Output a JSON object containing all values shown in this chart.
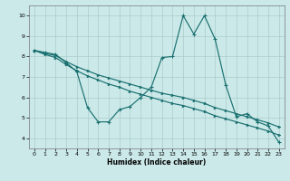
{
  "xlabel": "Humidex (Indice chaleur)",
  "bg_color": "#cce9e9",
  "grid_color": "#aacccc",
  "line_color": "#1a7070",
  "xlim": [
    -0.5,
    23.5
  ],
  "ylim": [
    3.5,
    10.5
  ],
  "xticks": [
    0,
    1,
    2,
    3,
    4,
    5,
    6,
    7,
    8,
    9,
    10,
    11,
    12,
    13,
    14,
    15,
    16,
    17,
    18,
    19,
    20,
    21,
    22,
    23
  ],
  "yticks": [
    4,
    5,
    6,
    7,
    8,
    9,
    10
  ],
  "line_zigzag_x": [
    0,
    1,
    2,
    3,
    4,
    5,
    6,
    7,
    8,
    9,
    10,
    11,
    12,
    13,
    14,
    15,
    16,
    17,
    18,
    19,
    20,
    21,
    22,
    23
  ],
  "line_zigzag_y": [
    8.3,
    8.2,
    8.1,
    7.7,
    7.25,
    5.5,
    4.8,
    4.8,
    5.4,
    5.55,
    6.0,
    6.5,
    7.95,
    8.0,
    10.0,
    9.1,
    10.0,
    8.85,
    6.6,
    5.05,
    5.2,
    4.8,
    4.6,
    3.8
  ],
  "line_upper_x": [
    0,
    1,
    2,
    3,
    4,
    5,
    6,
    7,
    8,
    9,
    10,
    11,
    12,
    13,
    14,
    15,
    16,
    17,
    18,
    19,
    20,
    21,
    22,
    23
  ],
  "line_upper_y": [
    8.3,
    8.15,
    8.05,
    7.75,
    7.5,
    7.3,
    7.1,
    6.95,
    6.8,
    6.65,
    6.5,
    6.35,
    6.2,
    6.1,
    6.0,
    5.85,
    5.7,
    5.5,
    5.35,
    5.2,
    5.05,
    4.9,
    4.75,
    4.55
  ],
  "line_lower_x": [
    0,
    1,
    2,
    3,
    4,
    5,
    6,
    7,
    8,
    9,
    10,
    11,
    12,
    13,
    14,
    15,
    16,
    17,
    18,
    19,
    20,
    21,
    22,
    23
  ],
  "line_lower_y": [
    8.3,
    8.1,
    7.95,
    7.6,
    7.3,
    7.05,
    6.85,
    6.65,
    6.5,
    6.3,
    6.15,
    6.0,
    5.85,
    5.7,
    5.6,
    5.45,
    5.3,
    5.1,
    4.95,
    4.8,
    4.65,
    4.5,
    4.35,
    4.15
  ]
}
